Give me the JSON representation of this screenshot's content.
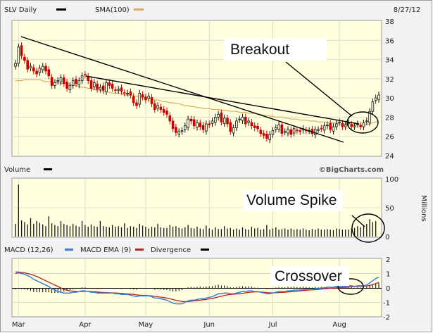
{
  "header": {
    "symbol_label": "SLV Daily",
    "sma_label": "SMA(100)",
    "date": "8/27/12"
  },
  "colors": {
    "panel_bg": "#ffffe0",
    "frame_bg": "#f0f0f0",
    "grid": "#dcdccc",
    "bull_candle": "#111111",
    "bear_candle": "#cc0000",
    "sma": "#d8ae5a",
    "trend_line": "#000000",
    "volume_bar": "#111111",
    "macd_line": "#3b7ddd",
    "ema_line": "#b22222",
    "divergence": "#000000"
  },
  "volume_panel": {
    "title": "Volume",
    "watermark": "©BigCharts.com",
    "unit_label": "Millions",
    "ticks": [
      "100",
      "50",
      "0"
    ]
  },
  "macd_panel": {
    "labels": [
      "MACD (12,26)",
      "MACD EMA (9)",
      "Divergence"
    ],
    "ticks": [
      "2",
      "1",
      "0",
      "-1",
      "-2"
    ]
  },
  "annotations": {
    "breakout": "Breakout",
    "volume_spike": "Volume Spike",
    "crossover": "Crossover"
  },
  "chart_data": [
    {
      "type": "candlestick",
      "ylim": [
        24,
        38
      ],
      "yticks": [
        38,
        36,
        34,
        32,
        30,
        28,
        26,
        24
      ],
      "x_labels": [
        "Mar",
        "Apr",
        "May",
        "Jun",
        "Jul",
        "Aug"
      ],
      "close": [
        33.6,
        35.3,
        34.4,
        33.9,
        33.0,
        33.3,
        32.8,
        32.5,
        33.1,
        33.3,
        32.8,
        32.3,
        31.3,
        31.6,
        31.8,
        32.1,
        31.5,
        31.0,
        31.3,
        31.8,
        31.5,
        31.8,
        32.3,
        32.4,
        31.8,
        31.0,
        31.6,
        30.9,
        31.1,
        30.8,
        31.6,
        31.3,
        31.0,
        30.8,
        30.9,
        30.7,
        30.5,
        30.5,
        30.3,
        29.5,
        29.2,
        30.5,
        30.1,
        29.8,
        30.2,
        29.4,
        28.8,
        29.2,
        28.8,
        28.5,
        28.3,
        27.6,
        26.8,
        26.4,
        26.5,
        26.6,
        27.1,
        27.8,
        27.6,
        27.1,
        27.4,
        27.0,
        26.7,
        27.3,
        27.2,
        27.6,
        28.0,
        28.3,
        27.5,
        27.9,
        27.3,
        26.5,
        26.9,
        27.6,
        27.8,
        28.0,
        27.3,
        27.6,
        27.1,
        26.9,
        26.8,
        26.3,
        26.1,
        25.8,
        26.2,
        26.6,
        26.9,
        27.2,
        26.3,
        26.5,
        26.7,
        26.2,
        26.8,
        26.6,
        26.5,
        26.8,
        26.6,
        26.6,
        26.3,
        26.7,
        26.7,
        26.8,
        27.1,
        27.2,
        26.7,
        27.0,
        27.3,
        27.5,
        27.0,
        27.2,
        27.4,
        27.0,
        27.1,
        27.3,
        27.0,
        27.4,
        27.6,
        28.6,
        29.6,
        30.0,
        30.3
      ],
      "sma_100": [
        31.8,
        31.8,
        31.8,
        31.9,
        31.9,
        31.9,
        31.9,
        31.9,
        31.9,
        31.8,
        31.7,
        31.7,
        31.7,
        31.6,
        31.6,
        31.5,
        31.5,
        31.5,
        31.4,
        31.4,
        31.3,
        31.2,
        31.1,
        31.1,
        31.0,
        31.0,
        30.9,
        30.8,
        30.8,
        30.7,
        30.6,
        30.6,
        30.5,
        30.5,
        30.5,
        30.4,
        30.3,
        30.3,
        30.3,
        30.2,
        30.2,
        30.1,
        30.0,
        30.0,
        30.0,
        29.9,
        29.8,
        29.8,
        29.7,
        29.6,
        29.6,
        29.5,
        29.5,
        29.4,
        29.4,
        29.3,
        29.2,
        29.2,
        29.1,
        29.1,
        29.0,
        29.0,
        28.9,
        28.9,
        28.9,
        28.8,
        28.8,
        28.8,
        28.7,
        28.7,
        28.7,
        28.6,
        28.6,
        28.6,
        28.5,
        28.5,
        28.5,
        28.4,
        28.4,
        28.4,
        28.3,
        28.3,
        28.2,
        28.2,
        28.1,
        28.1,
        28.0,
        28.0,
        28.0,
        27.9,
        27.9,
        27.8,
        27.8,
        27.8,
        27.7,
        27.7,
        27.7,
        27.6,
        27.6,
        27.6,
        27.5,
        27.5,
        27.5,
        27.5,
        27.4,
        27.4,
        27.4,
        27.3,
        27.3,
        27.3,
        27.3,
        27.3,
        27.3,
        27.2,
        27.2,
        27.2,
        27.2,
        27.3,
        27.4,
        27.5,
        27.6
      ]
    },
    {
      "type": "bar",
      "title": "Volume",
      "ylabel": "Millions",
      "ylim": [
        0,
        100
      ],
      "yticks": [
        100,
        50,
        0
      ],
      "values": [
        22,
        90,
        28,
        25,
        21,
        32,
        22,
        27,
        24,
        21,
        18,
        35,
        23,
        20,
        18,
        27,
        22,
        20,
        18,
        22,
        19,
        17,
        27,
        20,
        17,
        21,
        18,
        17,
        27,
        18,
        17,
        16,
        20,
        17,
        18,
        16,
        23,
        15,
        18,
        17,
        15,
        22,
        19,
        17,
        14,
        17,
        16,
        22,
        16,
        15,
        15,
        20,
        17,
        18,
        15,
        14,
        16,
        20,
        15,
        14,
        17,
        14,
        13,
        19,
        14,
        12,
        16,
        13,
        13,
        18,
        14,
        15,
        12,
        14,
        12,
        16,
        13,
        12,
        17,
        14,
        15,
        12,
        13,
        20,
        12,
        14,
        16,
        12,
        13,
        14,
        12,
        14,
        12,
        13,
        12,
        14,
        12,
        11,
        13,
        12,
        14,
        12,
        12,
        13,
        12,
        11,
        14,
        13,
        12,
        12,
        12,
        14,
        15,
        18,
        16,
        20,
        22,
        30,
        25,
        27
      ]
    },
    {
      "type": "line",
      "ylim": [
        -2,
        2
      ],
      "yticks": [
        2,
        1,
        0,
        -1,
        -2
      ],
      "series": [
        {
          "name": "MACD (12,26)",
          "values": [
            1.0,
            1.05,
            1.0,
            0.95,
            0.85,
            0.75,
            0.6,
            0.5,
            0.4,
            0.3,
            0.2,
            0.1,
            -0.05,
            -0.15,
            -0.25,
            -0.3,
            -0.35,
            -0.35,
            -0.35,
            -0.3,
            -0.3,
            -0.25,
            -0.2,
            -0.2,
            -0.25,
            -0.3,
            -0.3,
            -0.35,
            -0.35,
            -0.35,
            -0.35,
            -0.35,
            -0.35,
            -0.4,
            -0.4,
            -0.45,
            -0.45,
            -0.45,
            -0.5,
            -0.55,
            -0.6,
            -0.55,
            -0.55,
            -0.55,
            -0.55,
            -0.6,
            -0.7,
            -0.7,
            -0.75,
            -0.8,
            -0.85,
            -0.95,
            -1.05,
            -1.1,
            -1.1,
            -1.1,
            -1.0,
            -0.9,
            -0.85,
            -0.85,
            -0.8,
            -0.75,
            -0.75,
            -0.7,
            -0.65,
            -0.6,
            -0.5,
            -0.4,
            -0.4,
            -0.35,
            -0.35,
            -0.4,
            -0.4,
            -0.35,
            -0.3,
            -0.25,
            -0.25,
            -0.2,
            -0.2,
            -0.25,
            -0.25,
            -0.3,
            -0.35,
            -0.4,
            -0.4,
            -0.35,
            -0.3,
            -0.25,
            -0.25,
            -0.25,
            -0.2,
            -0.2,
            -0.15,
            -0.15,
            -0.15,
            -0.1,
            -0.1,
            -0.1,
            -0.1,
            -0.05,
            -0.05,
            0.0,
            0.0,
            0.05,
            0.05,
            0.05,
            0.1,
            0.1,
            0.1,
            0.1,
            0.15,
            0.15,
            0.1,
            0.15,
            0.15,
            0.15,
            0.2,
            0.35,
            0.5,
            0.65,
            0.75
          ]
        },
        {
          "name": "MACD EMA (9)",
          "values": [
            1.1,
            1.1,
            1.08,
            1.05,
            1.0,
            0.95,
            0.88,
            0.8,
            0.7,
            0.6,
            0.5,
            0.4,
            0.3,
            0.2,
            0.1,
            0.0,
            -0.1,
            -0.15,
            -0.2,
            -0.22,
            -0.24,
            -0.25,
            -0.25,
            -0.24,
            -0.24,
            -0.25,
            -0.26,
            -0.28,
            -0.3,
            -0.31,
            -0.32,
            -0.33,
            -0.34,
            -0.35,
            -0.36,
            -0.38,
            -0.4,
            -0.41,
            -0.43,
            -0.45,
            -0.48,
            -0.5,
            -0.51,
            -0.52,
            -0.53,
            -0.55,
            -0.58,
            -0.61,
            -0.64,
            -0.67,
            -0.7,
            -0.75,
            -0.8,
            -0.86,
            -0.9,
            -0.94,
            -0.95,
            -0.94,
            -0.92,
            -0.9,
            -0.87,
            -0.85,
            -0.82,
            -0.8,
            -0.76,
            -0.72,
            -0.68,
            -0.62,
            -0.57,
            -0.52,
            -0.48,
            -0.46,
            -0.44,
            -0.42,
            -0.4,
            -0.37,
            -0.34,
            -0.31,
            -0.29,
            -0.28,
            -0.27,
            -0.28,
            -0.3,
            -0.32,
            -0.34,
            -0.34,
            -0.33,
            -0.32,
            -0.31,
            -0.3,
            -0.28,
            -0.26,
            -0.24,
            -0.22,
            -0.2,
            -0.18,
            -0.16,
            -0.14,
            -0.13,
            -0.12,
            -0.1,
            -0.08,
            -0.06,
            -0.04,
            -0.02,
            -0.01,
            0.0,
            0.02,
            0.03,
            0.05,
            0.06,
            0.08,
            0.09,
            0.1,
            0.11,
            0.12,
            0.13,
            0.17,
            0.23,
            0.3,
            0.4
          ]
        },
        {
          "name": "Divergence",
          "values": [
            -0.1,
            -0.05,
            -0.08,
            -0.1,
            -0.15,
            -0.2,
            -0.28,
            -0.3,
            -0.3,
            -0.3,
            -0.3,
            -0.3,
            -0.35,
            -0.35,
            -0.35,
            -0.3,
            -0.25,
            -0.2,
            -0.15,
            -0.08,
            -0.06,
            0.0,
            0.05,
            0.04,
            -0.01,
            -0.05,
            -0.04,
            -0.07,
            -0.05,
            -0.04,
            -0.03,
            -0.02,
            -0.01,
            -0.05,
            -0.04,
            -0.07,
            -0.05,
            -0.04,
            -0.07,
            -0.1,
            -0.12,
            -0.05,
            -0.04,
            -0.03,
            -0.02,
            -0.05,
            -0.12,
            -0.09,
            -0.11,
            -0.13,
            -0.15,
            -0.2,
            -0.25,
            -0.24,
            -0.2,
            -0.16,
            -0.05,
            0.04,
            0.07,
            0.05,
            0.07,
            0.1,
            0.07,
            0.1,
            0.11,
            0.12,
            0.18,
            0.22,
            0.17,
            0.17,
            0.13,
            0.06,
            0.04,
            0.07,
            0.1,
            0.12,
            0.09,
            0.11,
            0.09,
            0.03,
            0.02,
            -0.02,
            -0.05,
            -0.08,
            -0.06,
            -0.01,
            0.03,
            0.07,
            0.06,
            0.05,
            0.08,
            0.06,
            0.09,
            0.07,
            0.05,
            0.08,
            0.06,
            0.04,
            0.03,
            0.07,
            0.05,
            0.08,
            0.06,
            0.09,
            0.07,
            0.06,
            0.1,
            0.08,
            0.07,
            0.05,
            0.09,
            0.07,
            0.01,
            0.04,
            0.03,
            0.02,
            0.07,
            0.18,
            0.27,
            0.35,
            0.35
          ]
        }
      ]
    }
  ]
}
